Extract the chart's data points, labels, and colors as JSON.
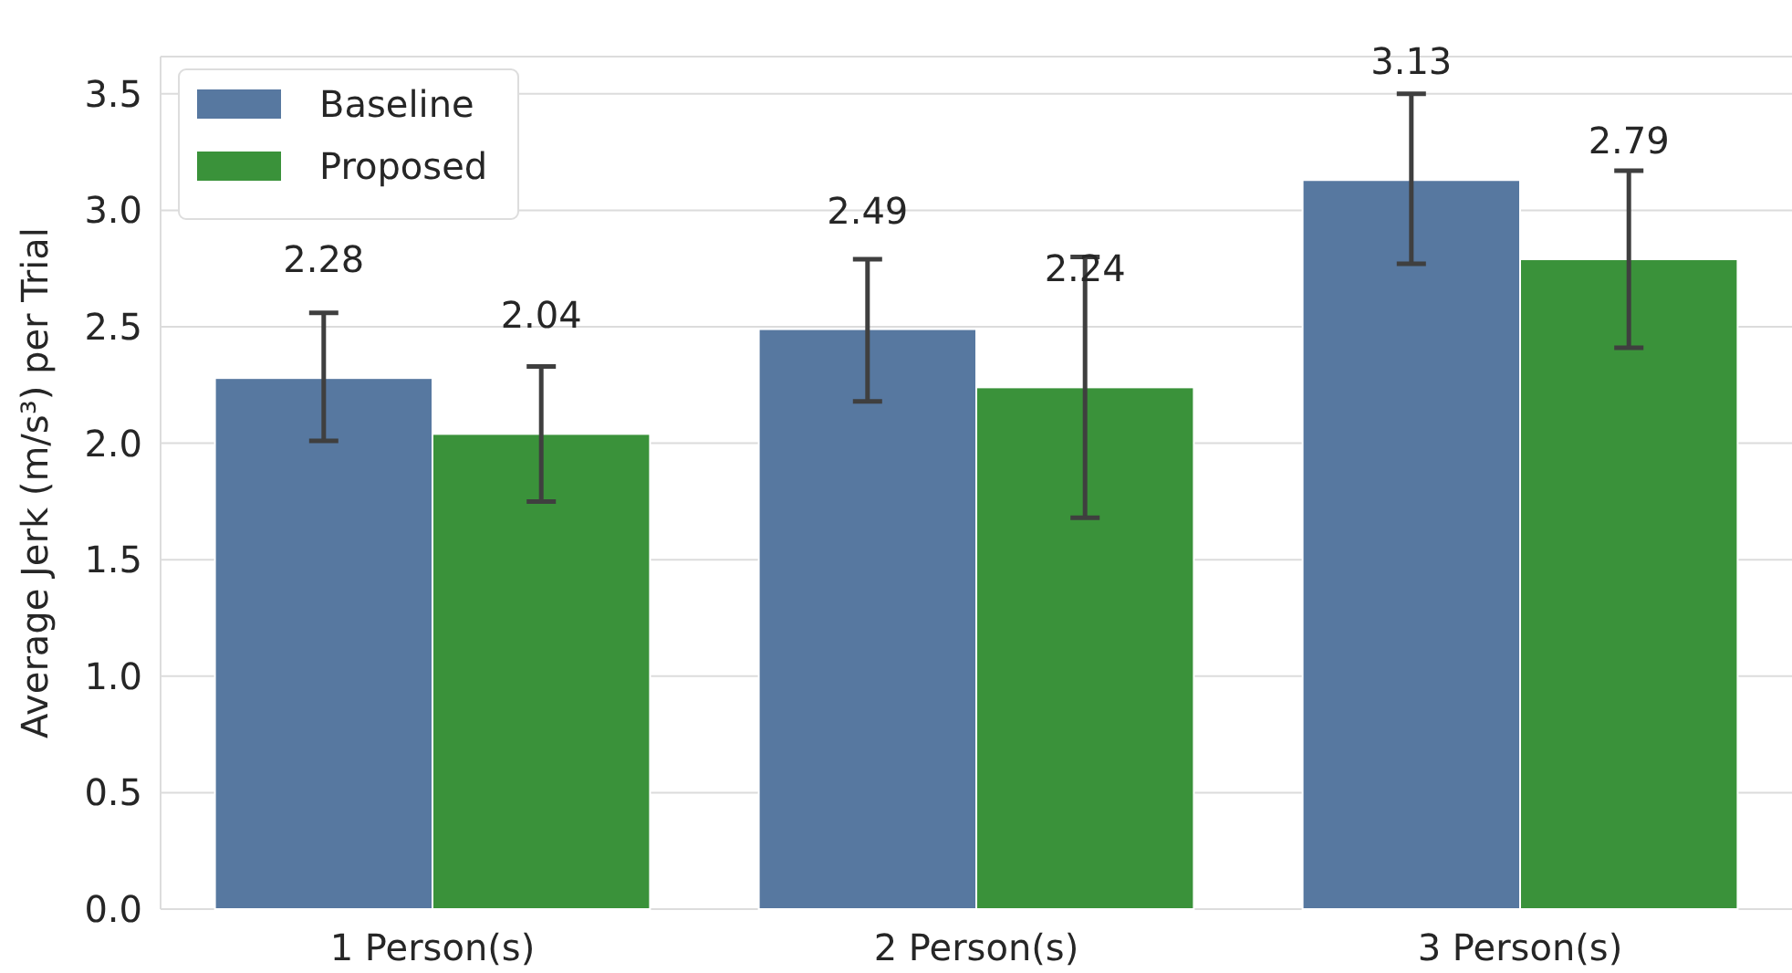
{
  "chart_data": {
    "type": "bar",
    "ylabel": "Average Jerk (m/s³) per Trial",
    "categories": [
      "1 Person(s)",
      "2 Person(s)",
      "3 Person(s)"
    ],
    "series": [
      {
        "name": "Baseline",
        "color": "#5778a0",
        "values": [
          2.28,
          2.49,
          3.13
        ],
        "errors": [
          [
            2.01,
            2.56
          ],
          [
            2.18,
            2.79
          ],
          [
            2.77,
            3.5
          ]
        ]
      },
      {
        "name": "Proposed",
        "color": "#3a923a",
        "values": [
          2.04,
          2.24,
          2.79
        ],
        "errors": [
          [
            1.75,
            2.33
          ],
          [
            1.68,
            2.8
          ],
          [
            2.41,
            3.17
          ]
        ]
      }
    ],
    "ylim": [
      0,
      3.66
    ],
    "yticks": [
      {
        "value": 0,
        "label": "0.0"
      },
      {
        "value": 0.5,
        "label": "0.5"
      },
      {
        "value": 1,
        "label": "1.0"
      },
      {
        "value": 1.5,
        "label": "1.5"
      },
      {
        "value": 2,
        "label": "2.0"
      },
      {
        "value": 2.5,
        "label": "2.5"
      },
      {
        "value": 3,
        "label": "3.0"
      },
      {
        "value": 3.5,
        "label": "3.5"
      }
    ],
    "grid": "y",
    "legend": "top left",
    "data_labels": true
  }
}
